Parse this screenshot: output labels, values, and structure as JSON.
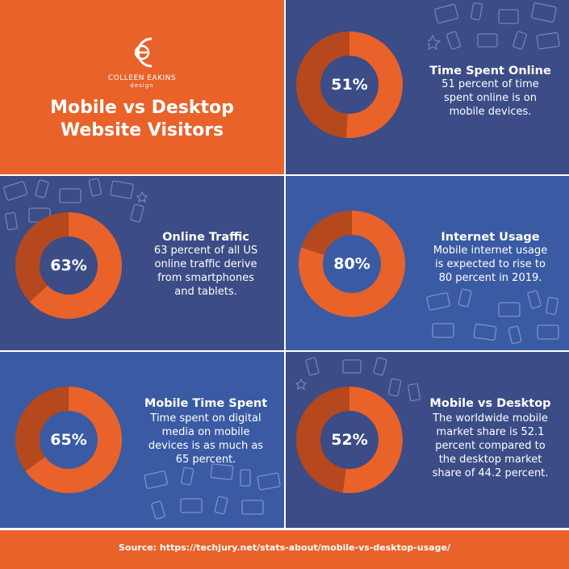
{
  "colors": {
    "orange": "#e9622a",
    "dark_orange": "#b5481c",
    "navy": "#3b4c86",
    "blue": "#3a5ba3",
    "white": "#ffffff"
  },
  "logo": {
    "name": "COLLEEN EAKINS",
    "sub": "design"
  },
  "title": {
    "line1": "Mobile vs Desktop",
    "line2": "Website Visitors"
  },
  "chart_data": [
    {
      "type": "pie",
      "title": "Time Spent Online",
      "label": "51%",
      "values": [
        51,
        49
      ],
      "description": "51 percent of time spent online is on mobile devices."
    },
    {
      "type": "pie",
      "title": "Online Traffic",
      "label": "63%",
      "values": [
        63,
        37
      ],
      "description": "63 percent of all US online traffic derive from smartphones and tablets."
    },
    {
      "type": "pie",
      "title": "Internet Usage",
      "label": "80%",
      "values": [
        80,
        20
      ],
      "description": "Mobile internet usage is expected to rise to 80 percent in 2019."
    },
    {
      "type": "pie",
      "title": "Mobile Time Spent",
      "label": "65%",
      "values": [
        65,
        35
      ],
      "description": "Time spent on digital media on mobile devices is as much as 65 percent."
    },
    {
      "type": "pie",
      "title": "Mobile vs Desktop",
      "label": "52%",
      "values": [
        52,
        48
      ],
      "description": "The worldwide mobile market share is 52.1 percent compared to the desktop market share of 44.2 percent."
    }
  ],
  "desc_lines": [
    [
      "51 percent of time",
      "spent online is on",
      "mobile devices."
    ],
    [
      "63 percent of all US",
      "online traffic derive",
      "from smartphones",
      "and tablets."
    ],
    [
      "Mobile internet usage",
      "is expected to rise to",
      "80 percent in 2019."
    ],
    [
      "Time spent on digital",
      "media on mobile",
      "devices is as much as",
      "65 percent."
    ],
    [
      "The worldwide mobile",
      "market share is 52.1",
      "percent compared to",
      "the desktop market",
      "share of 44.2 percent."
    ]
  ],
  "footer": {
    "source": "Source:  https://techjury.net/stats-about/mobile-vs-desktop-usage/"
  }
}
